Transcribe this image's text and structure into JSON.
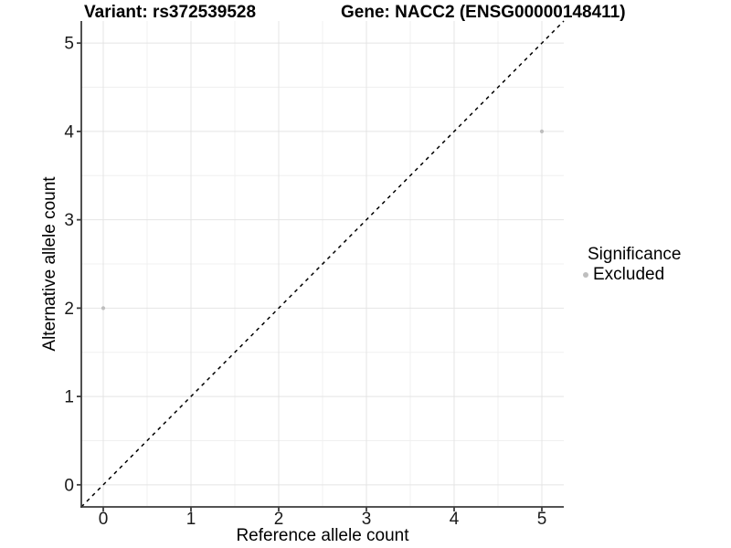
{
  "chart_data": {
    "type": "scatter",
    "titles": {
      "left": "Variant: rs372539528",
      "right": "Gene: NACC2 (ENSG00000148411)"
    },
    "xlabel": "Reference allele count",
    "ylabel": "Alternative allele count",
    "xlim": [
      -0.25,
      5.25
    ],
    "ylim": [
      -0.25,
      5.25
    ],
    "xticks": [
      0,
      1,
      2,
      3,
      4,
      5
    ],
    "yticks": [
      0,
      1,
      2,
      3,
      4,
      5
    ],
    "minor_ticks_x": [
      0.5,
      1.5,
      2.5,
      3.5,
      4.5
    ],
    "minor_ticks_y": [
      0.5,
      1.5,
      2.5,
      3.5,
      4.5
    ],
    "grid": "major+minor",
    "identity_line": {
      "slope": 1,
      "intercept": 0,
      "style": "dashed",
      "color": "#000000"
    },
    "series": [
      {
        "name": "Excluded",
        "color": "#bebebe",
        "points": [
          {
            "x": 0,
            "y": 2
          },
          {
            "x": 5,
            "y": 4
          }
        ]
      }
    ],
    "legend": {
      "title": "Significance",
      "position": "right",
      "entries": [
        {
          "label": "Excluded",
          "color": "#bebebe"
        }
      ]
    },
    "colors": {
      "background": "#ffffff",
      "grid_major": "#e4e4e4",
      "grid_minor": "#f0f0f0",
      "axis_line": "#3c3c3c",
      "tick_text": "#1a1a1a",
      "point": "#bebebe"
    }
  }
}
